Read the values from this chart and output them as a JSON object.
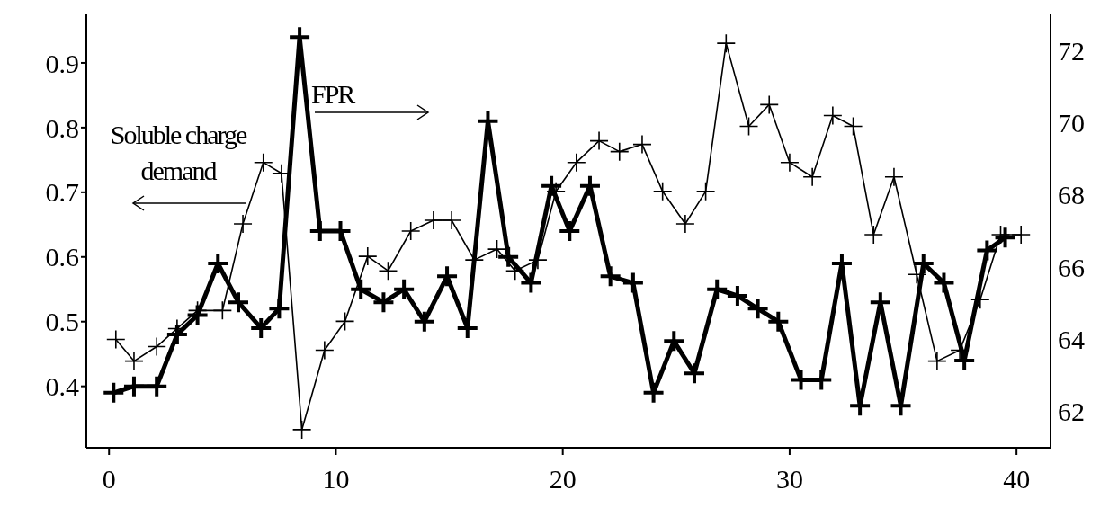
{
  "chart_data": {
    "type": "line",
    "xlim": [
      -1,
      41.5
    ],
    "xticks": [
      0,
      10,
      20,
      30,
      40
    ],
    "ylim": [
      0.305,
      0.975
    ],
    "yticks": [
      0.4,
      0.5,
      0.6,
      0.7,
      0.8,
      0.9
    ],
    "y2lim": [
      61,
      73
    ],
    "y2ticks": [
      62,
      64,
      66,
      68,
      70,
      72
    ],
    "marker": "cross",
    "line_style": "solid",
    "annotations": [
      "Soluble charge demand",
      "FPR"
    ],
    "series": [
      {
        "color": "#000000",
        "x": [
          0.2,
          1.1,
          2.1,
          3.0,
          3.9,
          4.8,
          5.7,
          6.7,
          7.5,
          8.4,
          9.3,
          10.2,
          11.1,
          12.1,
          13.0,
          13.9,
          14.9,
          15.8,
          16.7,
          17.6,
          18.6,
          19.5,
          20.3,
          21.2,
          22.1,
          23.1,
          24.0,
          24.9,
          25.8,
          26.8,
          27.7,
          28.6,
          29.5,
          30.5,
          31.4,
          32.3,
          33.1,
          34.0,
          34.9,
          35.9,
          36.8,
          37.7,
          38.7,
          39.5
        ],
        "values": [
          0.39,
          0.4,
          0.4,
          0.48,
          0.51,
          0.59,
          0.53,
          0.49,
          0.52,
          0.94,
          0.64,
          0.64,
          0.55,
          0.53,
          0.55,
          0.5,
          0.57,
          0.49,
          0.81,
          0.6,
          0.56,
          0.71,
          0.64,
          0.71,
          0.57,
          0.56,
          0.39,
          0.47,
          0.42,
          0.55,
          0.54,
          0.52,
          0.5,
          0.41,
          0.41,
          0.59,
          0.37,
          0.53,
          0.37,
          0.59,
          0.56,
          0.44,
          0.61,
          0.63
        ]
      },
      {
        "color": "#000000",
        "axis": "y2",
        "x": [
          0.3,
          1.1,
          2.1,
          3.0,
          3.9,
          5.0,
          5.9,
          6.8,
          7.6,
          8.5,
          9.5,
          10.4,
          11.4,
          12.3,
          13.3,
          14.3,
          15.1,
          16.1,
          17.1,
          17.9,
          18.9,
          19.7,
          20.6,
          21.6,
          22.5,
          23.5,
          24.4,
          25.4,
          26.3,
          27.2,
          28.2,
          29.1,
          30.0,
          31.0,
          31.9,
          32.8,
          33.7,
          34.6,
          35.6,
          36.5,
          37.5,
          38.4,
          39.3,
          40.2
        ],
        "values": [
          64.0,
          63.4,
          63.8,
          64.3,
          64.8,
          64.8,
          67.2,
          68.9,
          68.6,
          61.5,
          63.7,
          64.5,
          66.3,
          65.9,
          67.0,
          67.3,
          67.3,
          66.2,
          66.5,
          65.9,
          66.2,
          68.1,
          68.9,
          69.5,
          69.2,
          69.4,
          68.1,
          67.2,
          68.1,
          72.2,
          69.9,
          70.5,
          68.9,
          68.5,
          70.2,
          69.9,
          66.9,
          68.5,
          65.8,
          63.4,
          63.7,
          65.1,
          66.9,
          66.9
        ]
      }
    ]
  }
}
